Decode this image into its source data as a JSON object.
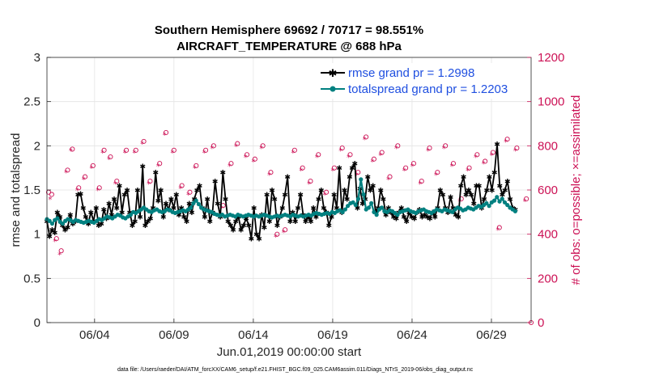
{
  "chart_data": {
    "type": "line",
    "title": "Southern Hemisphere 69692 / 70717 = 98.551%",
    "subtitle": "AIRCRAFT_TEMPERATURE @ 688 hPa",
    "xlabel": "Jun.01,2019 00:00:00 start",
    "ylabel_left": "rmse and totalspread",
    "ylabel_right": "# of obs: o=possible; ×=assimilated",
    "footer": "data file: /Users/raeder/DAI/ATM_forcXX/CAM6_setup/f.e21.FHIST_BGC.f09_025.CAM6assim.011/Diags_NTrS_2019-06/obs_diag_output.nc",
    "x_range": [
      1,
      31.5
    ],
    "ylim_left": [
      0,
      3
    ],
    "ylim_right": [
      0,
      1200
    ],
    "x_ticks": [
      4,
      9,
      14,
      19,
      24,
      29
    ],
    "x_tick_labels": [
      "06/04",
      "06/09",
      "06/14",
      "06/19",
      "06/24",
      "06/29"
    ],
    "y_left_ticks": [
      0,
      0.5,
      1,
      1.5,
      2,
      2.5,
      3
    ],
    "y_left_tick_labels": [
      "0",
      "0.5",
      "1",
      "1.5",
      "2",
      "2.5",
      "3"
    ],
    "y_right_ticks": [
      0,
      200,
      400,
      600,
      800,
      1000,
      1200
    ],
    "y_right_tick_labels": [
      "0",
      "200",
      "400",
      "600",
      "800",
      "1000",
      "1200"
    ],
    "series": [
      {
        "name": "rmse grand pr = 1.2998",
        "axis": "left",
        "color": "#000000",
        "values": [
          1.15,
          0.98,
          1.05,
          1.02,
          1.25,
          1.2,
          1.1,
          1.05,
          1.08,
          1.22,
          1.12,
          1.15,
          1.45,
          1.46,
          1.3,
          1.2,
          1.12,
          1.25,
          1.15,
          1.3,
          1.1,
          1.12,
          1.28,
          1.18,
          1.35,
          1.22,
          1.4,
          1.3,
          1.55,
          1.25,
          1.45,
          1.5,
          1.25,
          1.1,
          1.15,
          1.5,
          1.2,
          1.77,
          1.1,
          1.15,
          1.18,
          1.3,
          1.7,
          1.38,
          1.5,
          1.2,
          1.35,
          1.28,
          1.4,
          1.3,
          1.45,
          1.22,
          1.3,
          1.2,
          1.15,
          1.35,
          1.25,
          1.4,
          1.5,
          1.55,
          1.3,
          1.2,
          1.4,
          1.15,
          1.25,
          1.6,
          1.35,
          1.2,
          1.7,
          1.4,
          1.15,
          1.1,
          1.05,
          1.15,
          1.2,
          1.05,
          1.1,
          1.18,
          1.1,
          0.95,
          1.3,
          1.0,
          0.95,
          1.22,
          1.08,
          1.45,
          1.15,
          1.5,
          1.4,
          1.1,
          1.2,
          1.3,
          1.45,
          1.65,
          1.15,
          1.25,
          1.15,
          1.3,
          1.45,
          1.22,
          1.15,
          1.2,
          1.15,
          1.3,
          1.2,
          1.4,
          1.5,
          1.3,
          1.25,
          1.1,
          1.2,
          1.45,
          1.3,
          1.75,
          1.25,
          1.5,
          1.4,
          1.65,
          1.75,
          1.8,
          1.3,
          1.52,
          1.35,
          1.4,
          1.65,
          1.5,
          1.55,
          1.25,
          1.3,
          1.5,
          1.4,
          1.22,
          1.3,
          1.25,
          1.2,
          1.18,
          1.25,
          1.3,
          1.2,
          1.15,
          1.25,
          1.2,
          1.18,
          1.25,
          1.28,
          1.2,
          1.22,
          1.2,
          1.18,
          1.25,
          1.2,
          1.3,
          1.5,
          1.45,
          1.3,
          1.25,
          1.42,
          1.3,
          1.22,
          1.2,
          1.55,
          1.65,
          1.45,
          1.5,
          1.45,
          1.35,
          1.55,
          1.55,
          1.3,
          1.4,
          1.5,
          1.65,
          1.5,
          1.7,
          2.02,
          1.55,
          1.45,
          1.5,
          1.6,
          1.4,
          1.3,
          1.28
        ]
      },
      {
        "name": "totalspread grand pr = 1.2203",
        "axis": "left",
        "color": "#008080",
        "values": [
          1.17,
          1.15,
          1.12,
          1.16,
          1.18,
          1.14,
          1.12,
          1.15,
          1.17,
          1.16,
          1.14,
          1.16,
          1.15,
          1.14,
          1.13,
          1.14,
          1.15,
          1.14,
          1.13,
          1.15,
          1.17,
          1.16,
          1.18,
          1.2,
          1.19,
          1.18,
          1.2,
          1.22,
          1.21,
          1.19,
          1.18,
          1.2,
          1.22,
          1.25,
          1.24,
          1.26,
          1.28,
          1.3,
          1.28,
          1.26,
          1.25,
          1.27,
          1.28,
          1.26,
          1.25,
          1.26,
          1.28,
          1.27,
          1.25,
          1.24,
          1.25,
          1.26,
          1.27,
          1.26,
          1.28,
          1.3,
          1.35,
          1.38,
          1.34,
          1.3,
          1.28,
          1.27,
          1.26,
          1.25,
          1.23,
          1.22,
          1.21,
          1.22,
          1.2,
          1.21,
          1.22,
          1.21,
          1.2,
          1.22,
          1.21,
          1.2,
          1.21,
          1.22,
          1.21,
          1.2,
          1.21,
          1.2,
          1.21,
          1.22,
          1.21,
          1.2,
          1.19,
          1.2,
          1.21,
          1.2,
          1.21,
          1.22,
          1.21,
          1.2,
          1.22,
          1.21,
          1.2,
          1.21,
          1.2,
          1.21,
          1.22,
          1.21,
          1.23,
          1.24,
          1.23,
          1.22,
          1.23,
          1.24,
          1.23,
          1.25,
          1.24,
          1.26,
          1.27,
          1.25,
          1.28,
          1.32,
          1.35,
          1.36,
          1.33,
          1.4,
          1.62,
          1.45,
          1.28,
          1.3,
          1.35,
          1.25,
          1.22,
          1.28,
          1.3,
          1.26,
          1.25,
          1.27,
          1.26,
          1.24,
          1.22,
          1.25,
          1.26,
          1.27,
          1.28,
          1.26,
          1.25,
          1.24,
          1.26,
          1.27,
          1.28,
          1.26,
          1.25,
          1.24,
          1.26,
          1.28,
          1.27,
          1.26,
          1.28,
          1.27,
          1.26,
          1.25,
          1.28,
          1.3,
          1.29,
          1.27,
          1.28,
          1.3,
          1.29,
          1.28,
          1.3,
          1.32,
          1.31,
          1.33,
          1.35,
          1.32,
          1.36,
          1.38,
          1.42,
          1.37,
          1.4,
          1.36,
          1.33,
          1.3,
          1.28,
          1.26
        ]
      }
    ],
    "obs_possible": [
      [
        1.1,
        590
      ],
      [
        1.3,
        580
      ],
      [
        1.6,
        380
      ],
      [
        1.9,
        325
      ],
      [
        2.3,
        690
      ],
      [
        2.6,
        785
      ],
      [
        3.0,
        610
      ],
      [
        3.4,
        660
      ],
      [
        3.9,
        710
      ],
      [
        4.3,
        610
      ],
      [
        4.6,
        780
      ],
      [
        5.0,
        750
      ],
      [
        5.4,
        640
      ],
      [
        6.0,
        780
      ],
      [
        6.6,
        780
      ],
      [
        7.1,
        820
      ],
      [
        7.5,
        640
      ],
      [
        8.1,
        720
      ],
      [
        8.5,
        860
      ],
      [
        9.0,
        780
      ],
      [
        9.5,
        620
      ],
      [
        10.0,
        590
      ],
      [
        10.4,
        710
      ],
      [
        11.0,
        780
      ],
      [
        11.5,
        800
      ],
      [
        12.1,
        530
      ],
      [
        12.6,
        720
      ],
      [
        13.0,
        810
      ],
      [
        13.6,
        760
      ],
      [
        14.1,
        740
      ],
      [
        14.6,
        800
      ],
      [
        15.1,
        680
      ],
      [
        15.5,
        400
      ],
      [
        16.0,
        420
      ],
      [
        16.6,
        780
      ],
      [
        17.1,
        700
      ],
      [
        17.6,
        640
      ],
      [
        18.1,
        760
      ],
      [
        18.6,
        590
      ],
      [
        19.1,
        700
      ],
      [
        19.6,
        790
      ],
      [
        20.1,
        760
      ],
      [
        20.6,
        680
      ],
      [
        21.1,
        840
      ],
      [
        21.6,
        740
      ],
      [
        22.1,
        770
      ],
      [
        22.6,
        660
      ],
      [
        23.1,
        800
      ],
      [
        23.6,
        700
      ],
      [
        24.1,
        720
      ],
      [
        24.6,
        640
      ],
      [
        25.1,
        790
      ],
      [
        25.6,
        680
      ],
      [
        26.1,
        800
      ],
      [
        26.6,
        720
      ],
      [
        27.1,
        560
      ],
      [
        27.6,
        700
      ],
      [
        28.1,
        760
      ],
      [
        28.6,
        730
      ],
      [
        29.1,
        770
      ],
      [
        29.5,
        430
      ],
      [
        30.0,
        830
      ],
      [
        30.6,
        790
      ],
      [
        31.2,
        560
      ]
    ],
    "obs_assimilated": [
      [
        1.2,
        560
      ],
      [
        1.5,
        370
      ],
      [
        1.8,
        310
      ],
      [
        2.2,
        680
      ],
      [
        2.5,
        780
      ],
      [
        2.9,
        600
      ],
      [
        3.3,
        650
      ],
      [
        3.8,
        700
      ],
      [
        4.2,
        600
      ],
      [
        4.5,
        770
      ],
      [
        4.9,
        740
      ],
      [
        5.3,
        630
      ],
      [
        5.9,
        770
      ],
      [
        6.5,
        770
      ],
      [
        7.0,
        810
      ],
      [
        7.4,
        630
      ],
      [
        8.0,
        710
      ],
      [
        8.4,
        850
      ],
      [
        8.9,
        770
      ],
      [
        9.4,
        610
      ],
      [
        9.9,
        580
      ],
      [
        10.3,
        700
      ],
      [
        10.9,
        770
      ],
      [
        11.4,
        790
      ],
      [
        12.0,
        520
      ],
      [
        12.5,
        710
      ],
      [
        12.9,
        800
      ],
      [
        13.5,
        750
      ],
      [
        14.0,
        730
      ],
      [
        14.5,
        790
      ],
      [
        15.0,
        670
      ],
      [
        15.4,
        390
      ],
      [
        15.9,
        410
      ],
      [
        16.5,
        770
      ],
      [
        17.0,
        690
      ],
      [
        17.5,
        630
      ],
      [
        18.0,
        750
      ],
      [
        18.5,
        580
      ],
      [
        19.0,
        690
      ],
      [
        19.5,
        780
      ],
      [
        20.0,
        750
      ],
      [
        20.5,
        670
      ],
      [
        21.0,
        830
      ],
      [
        21.5,
        730
      ],
      [
        22.0,
        760
      ],
      [
        22.5,
        650
      ],
      [
        23.0,
        790
      ],
      [
        23.5,
        690
      ],
      [
        24.0,
        710
      ],
      [
        24.5,
        630
      ],
      [
        25.0,
        780
      ],
      [
        25.5,
        670
      ],
      [
        26.0,
        790
      ],
      [
        26.5,
        710
      ],
      [
        27.0,
        550
      ],
      [
        27.5,
        690
      ],
      [
        28.0,
        750
      ],
      [
        28.5,
        720
      ],
      [
        29.0,
        760
      ],
      [
        29.4,
        420
      ],
      [
        29.9,
        820
      ],
      [
        30.5,
        780
      ],
      [
        31.1,
        550
      ]
    ]
  }
}
